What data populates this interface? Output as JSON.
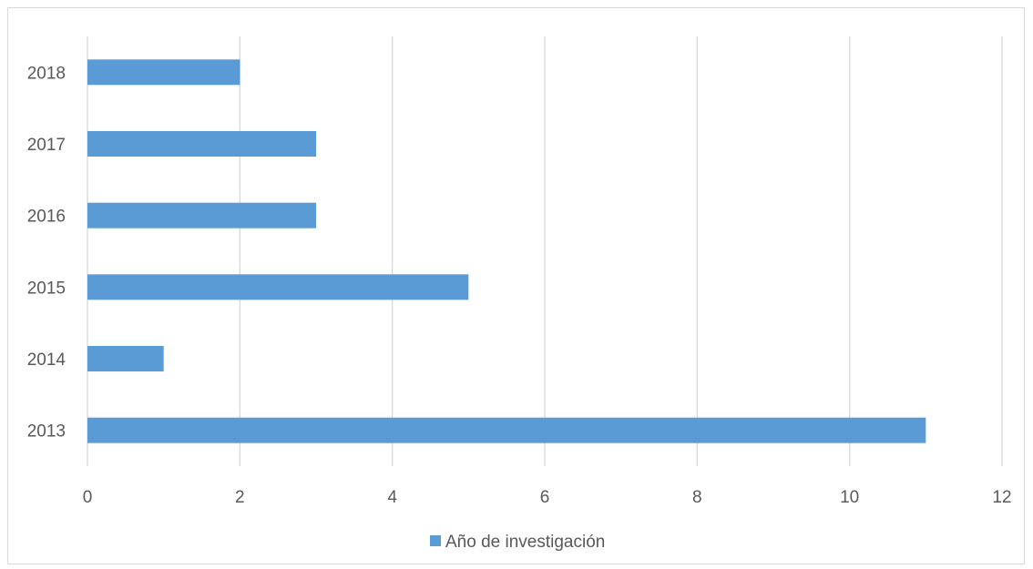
{
  "chart_data": {
    "type": "bar",
    "orientation": "horizontal",
    "categories": [
      "2013",
      "2014",
      "2015",
      "2016",
      "2017",
      "2018"
    ],
    "series": [
      {
        "name": "Año de investigación",
        "values": [
          11,
          1,
          5,
          3,
          3,
          2
        ],
        "color": "#5b9bd5"
      }
    ],
    "xlim": [
      0,
      12
    ],
    "x_ticks": [
      "0",
      "2",
      "4",
      "6",
      "8",
      "10",
      "12"
    ],
    "grid": "vertical",
    "legend_position": "bottom",
    "gridline_color": "#d9d9d9",
    "label_color": "#595959"
  }
}
